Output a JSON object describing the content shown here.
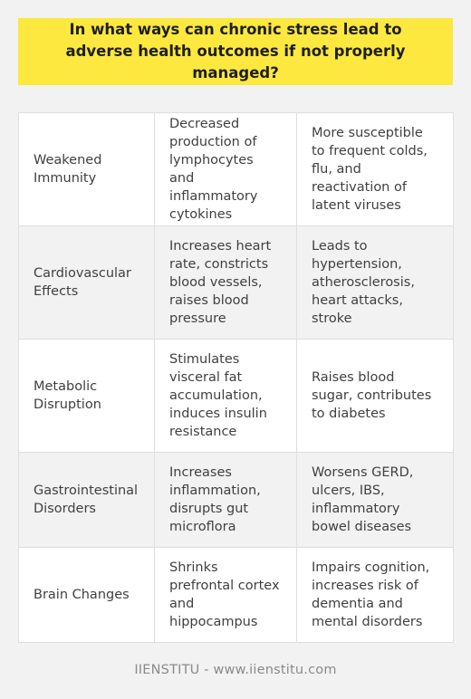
{
  "header": {
    "title": "In what ways can chronic stress lead to adverse health outcomes if not properly managed?"
  },
  "table": {
    "rows": [
      {
        "category": "Weakened Immunity",
        "mechanism": "Decreased production of lymphocytes and inflammatory cytokines",
        "outcome": "More susceptible to frequent colds, flu, and reactivation of latent viruses"
      },
      {
        "category": "Cardiovascular Effects",
        "mechanism": "Increases heart rate, constricts blood vessels, raises blood pressure",
        "outcome": "Leads to hypertension, atherosclerosis, heart attacks, stroke"
      },
      {
        "category": "Metabolic Disruption",
        "mechanism": "Stimulates visceral fat accumulation, induces insulin resistance",
        "outcome": "Raises blood sugar, contributes to diabetes"
      },
      {
        "category": "Gastrointestinal Disorders",
        "mechanism": "Increases inflammation, disrupts gut microflora",
        "outcome": "Worsens GERD, ulcers, IBS, inflammatory bowel diseases"
      },
      {
        "category": "Brain Changes",
        "mechanism": "Shrinks prefrontal cortex and hippocampus",
        "outcome": "Impairs cognition, increases risk of dementia and mental disorders"
      }
    ]
  },
  "footer": {
    "text": "IIENSTITU - www.iienstitu.com"
  },
  "colors": {
    "header_background": "#fde83f",
    "row_white": "#ffffff",
    "row_grey": "#f2f2f2",
    "page_background": "#f2f2f2"
  }
}
